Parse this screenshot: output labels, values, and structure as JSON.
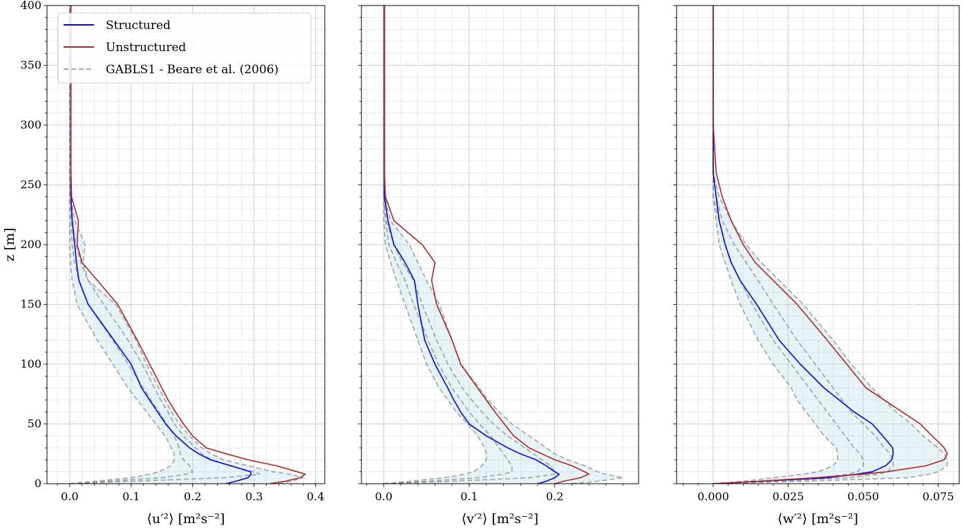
{
  "chart_data": {
    "type": "line",
    "ylabel": "z [m]",
    "ylim": [
      0,
      400
    ],
    "yticks": [
      0,
      50,
      100,
      150,
      200,
      250,
      300,
      350,
      400
    ],
    "grid": true,
    "legend": {
      "placement": "top-left",
      "entries": [
        "Structured",
        "Unstructured",
        "GABLS1 - Beare et al. (2006)"
      ]
    },
    "colors": {
      "structured": "#0000ff",
      "unstructured": "#b22222",
      "gabls": "#7f7f7f",
      "band": "#add8e6"
    },
    "z": [
      0,
      2,
      5,
      8,
      10,
      15,
      20,
      25,
      30,
      40,
      50,
      60,
      70,
      80,
      100,
      120,
      150,
      170,
      185,
      200,
      220,
      240,
      260,
      300,
      400
    ],
    "panels": [
      {
        "xlabel": "⟨u′²⟩ [m²s⁻²]",
        "xlim": [
          -0.037,
          0.415
        ],
        "xticks": [
          0.0,
          0.1,
          0.2,
          0.3,
          0.4
        ],
        "xtick_labels": [
          "0.0",
          "0.1",
          "0.2",
          "0.3",
          "0.4"
        ],
        "minor_x": 0.02,
        "structured": [
          0.254,
          0.27,
          0.29,
          0.295,
          0.294,
          0.262,
          0.229,
          0.21,
          0.195,
          0.173,
          0.156,
          0.143,
          0.13,
          0.117,
          0.1,
          0.072,
          0.03,
          0.015,
          0.011,
          0.008,
          0.004,
          0.002,
          0.002,
          0.002,
          0.002
        ],
        "unstructured": [
          0.325,
          0.35,
          0.375,
          0.383,
          0.37,
          0.336,
          0.29,
          0.255,
          0.222,
          0.2,
          0.185,
          0.172,
          0.16,
          0.15,
          0.13,
          0.11,
          0.078,
          0.045,
          0.02,
          0.012,
          0.014,
          0.003,
          0.002,
          0.002,
          0.002
        ],
        "gabls": [
          [
            0,
            0.04,
            0.1,
            0.13,
            0.145,
            0.165,
            0.17,
            0.17,
            0.165,
            0.155,
            0.14,
            0.125,
            0.11,
            0.095,
            0.07,
            0.045,
            0.012,
            0.004,
            0.001,
            0,
            0,
            0,
            0,
            0,
            0
          ],
          [
            0,
            0.06,
            0.15,
            0.19,
            0.2,
            0.195,
            0.185,
            0.18,
            0.178,
            0.17,
            0.158,
            0.145,
            0.132,
            0.12,
            0.095,
            0.07,
            0.03,
            0.015,
            0.008,
            0.004,
            0.002,
            0,
            0,
            0,
            0
          ],
          [
            0,
            0.1,
            0.25,
            0.31,
            0.3,
            0.26,
            0.23,
            0.215,
            0.205,
            0.185,
            0.17,
            0.16,
            0.148,
            0.138,
            0.118,
            0.095,
            0.055,
            0.03,
            0.018,
            0.01,
            0.004,
            0.001,
            0,
            0,
            0
          ],
          [
            0.34,
            0.36,
            0.38,
            0.36,
            0.33,
            0.29,
            0.25,
            0.23,
            0.215,
            0.195,
            0.178,
            0.166,
            0.155,
            0.145,
            0.125,
            0.108,
            0.075,
            0.03,
            0.022,
            0.025,
            0.008,
            0.002,
            0,
            0,
            0
          ]
        ]
      },
      {
        "xlabel": "⟨v′²⟩ [m²s⁻²]",
        "xlim": [
          -0.026,
          0.298
        ],
        "xticks": [
          0.0,
          0.1,
          0.2
        ],
        "xtick_labels": [
          "0.0",
          "0.1",
          "0.2"
        ],
        "minor_x": 0.02,
        "structured": [
          0.18,
          0.19,
          0.2,
          0.205,
          0.2,
          0.19,
          0.178,
          0.16,
          0.145,
          0.12,
          0.1,
          0.09,
          0.082,
          0.075,
          0.06,
          0.048,
          0.04,
          0.036,
          0.025,
          0.012,
          0.005,
          0.001,
          0.001,
          0.001,
          0.001
        ],
        "unstructured": [
          0.2,
          0.21,
          0.23,
          0.24,
          0.235,
          0.22,
          0.2,
          0.185,
          0.17,
          0.152,
          0.141,
          0.13,
          0.12,
          0.11,
          0.09,
          0.08,
          0.062,
          0.056,
          0.06,
          0.045,
          0.012,
          0.002,
          0.001,
          0.001,
          0.001
        ],
        "gabls": [
          [
            0,
            0.03,
            0.07,
            0.095,
            0.105,
            0.115,
            0.12,
            0.12,
            0.118,
            0.11,
            0.098,
            0.085,
            0.075,
            0.065,
            0.05,
            0.04,
            0.025,
            0.015,
            0.008,
            0.002,
            0,
            0,
            0,
            0,
            0
          ],
          [
            0,
            0.05,
            0.11,
            0.14,
            0.15,
            0.15,
            0.145,
            0.14,
            0.135,
            0.125,
            0.112,
            0.1,
            0.09,
            0.08,
            0.064,
            0.052,
            0.035,
            0.025,
            0.015,
            0.006,
            0.002,
            0,
            0,
            0,
            0
          ],
          [
            0,
            0.08,
            0.17,
            0.2,
            0.2,
            0.195,
            0.185,
            0.175,
            0.165,
            0.145,
            0.128,
            0.115,
            0.103,
            0.092,
            0.075,
            0.062,
            0.045,
            0.035,
            0.022,
            0.012,
            0.003,
            0,
            0,
            0,
            0
          ],
          [
            0.22,
            0.25,
            0.28,
            0.26,
            0.25,
            0.235,
            0.215,
            0.2,
            0.19,
            0.17,
            0.15,
            0.135,
            0.122,
            0.112,
            0.09,
            0.08,
            0.065,
            0.05,
            0.04,
            0.03,
            0.008,
            0.001,
            0,
            0,
            0
          ]
        ]
      },
      {
        "xlabel": "⟨w′²⟩ [m²s⁻²]",
        "xlim": [
          -0.0122,
          0.082
        ],
        "xticks": [
          0.0,
          0.025,
          0.05,
          0.075
        ],
        "xtick_labels": [
          "0.000",
          "0.025",
          "0.050",
          "0.075"
        ],
        "minor_x": 0.005,
        "structured": [
          0,
          0.016,
          0.038,
          0.048,
          0.053,
          0.0575,
          0.0595,
          0.06,
          0.0598,
          0.0565,
          0.053,
          0.047,
          0.042,
          0.037,
          0.029,
          0.022,
          0.0145,
          0.009,
          0.006,
          0.004,
          0.002,
          0.001,
          0,
          0,
          0
        ],
        "unstructured": [
          0,
          0.015,
          0.034,
          0.05,
          0.058,
          0.071,
          0.077,
          0.078,
          0.077,
          0.073,
          0.069,
          0.063,
          0.057,
          0.051,
          0.0445,
          0.038,
          0.028,
          0.02,
          0.014,
          0.01,
          0.006,
          0.003,
          0.001,
          0,
          0
        ],
        "gabls": [
          [
            0,
            0.01,
            0.02,
            0.03,
            0.035,
            0.04,
            0.0415,
            0.0415,
            0.041,
            0.037,
            0.034,
            0.031,
            0.028,
            0.026,
            0.02,
            0.015,
            0.009,
            0.006,
            0.004,
            0.002,
            0.001,
            0,
            0,
            0,
            0
          ],
          [
            0,
            0.015,
            0.035,
            0.045,
            0.048,
            0.05,
            0.05,
            0.049,
            0.047,
            0.044,
            0.041,
            0.038,
            0.035,
            0.032,
            0.026,
            0.02,
            0.013,
            0.009,
            0.006,
            0.004,
            0.002,
            0,
            0,
            0,
            0
          ],
          [
            0,
            0.02,
            0.045,
            0.055,
            0.058,
            0.06,
            0.06,
            0.059,
            0.057,
            0.054,
            0.05,
            0.046,
            0.043,
            0.04,
            0.034,
            0.028,
            0.02,
            0.015,
            0.011,
            0.007,
            0.003,
            0.001,
            0,
            0,
            0
          ],
          [
            0,
            0.03,
            0.065,
            0.072,
            0.075,
            0.078,
            0.078,
            0.077,
            0.075,
            0.07,
            0.066,
            0.061,
            0.057,
            0.053,
            0.046,
            0.04,
            0.03,
            0.022,
            0.016,
            0.011,
            0.006,
            0.002,
            0,
            0,
            0
          ]
        ]
      }
    ]
  }
}
